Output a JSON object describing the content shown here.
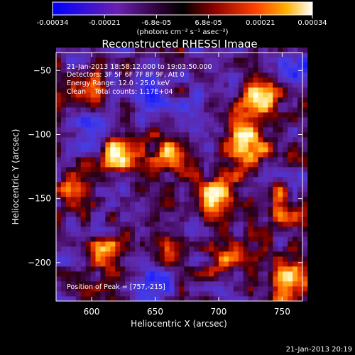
{
  "chart_data": {
    "type": "heatmap",
    "title": "Reconstructed RHESSI Image",
    "xlabel": "Heliocentric X (arcsec)",
    "ylabel": "Heliocentric Y (arcsec)",
    "xlim": [
      572,
      766
    ],
    "ylim": [
      -230,
      -36
    ],
    "x_ticks": [
      600,
      650,
      700,
      750
    ],
    "y_ticks": [
      -50,
      -100,
      -150,
      -200
    ],
    "colorbar": {
      "ticks": [
        "-0.00034",
        "-0.00021",
        "-6.8e-05",
        "6.8e-05",
        "0.00021",
        "0.00034"
      ],
      "units": "(photons cm⁻² s⁻¹ asec⁻²)",
      "range": [
        -0.00034,
        0.00034
      ]
    },
    "annotations": [
      "21-Jan-2013 18:58:12.000 to 19:03:50.000",
      "Detectors: 3F 5F 6F 7F 8F 9F, Att 0",
      "Energy Range: 12.0 - 25.0 keV",
      "Clean    Total counts: 1.17E+04"
    ],
    "peak_label": "Position of Peak = [757,-215]",
    "peak": [
      757,
      -215
    ],
    "bright_sources": [
      {
        "x": 735,
        "y": -68,
        "level": 0.9
      },
      {
        "x": 722,
        "y": -110,
        "level": 0.95
      },
      {
        "x": 697,
        "y": -150,
        "level": 0.85
      },
      {
        "x": 665,
        "y": -115,
        "level": 0.7
      },
      {
        "x": 620,
        "y": -115,
        "level": 0.75
      },
      {
        "x": 598,
        "y": -65,
        "level": 0.6
      },
      {
        "x": 610,
        "y": -195,
        "level": 0.65
      },
      {
        "x": 705,
        "y": -195,
        "level": 0.6
      },
      {
        "x": 757,
        "y": -215,
        "level": 1.0
      },
      {
        "x": 655,
        "y": -185,
        "level": 0.5
      },
      {
        "x": 590,
        "y": -140,
        "level": 0.45
      },
      {
        "x": 750,
        "y": -155,
        "level": 0.55
      }
    ],
    "dark_regions": [
      {
        "x": 645,
        "y": -215
      },
      {
        "x": 600,
        "y": -95
      },
      {
        "x": 645,
        "y": -70
      },
      {
        "x": 760,
        "y": -45
      }
    ]
  },
  "footer_timestamp": "21-Jan-2013 20:19"
}
